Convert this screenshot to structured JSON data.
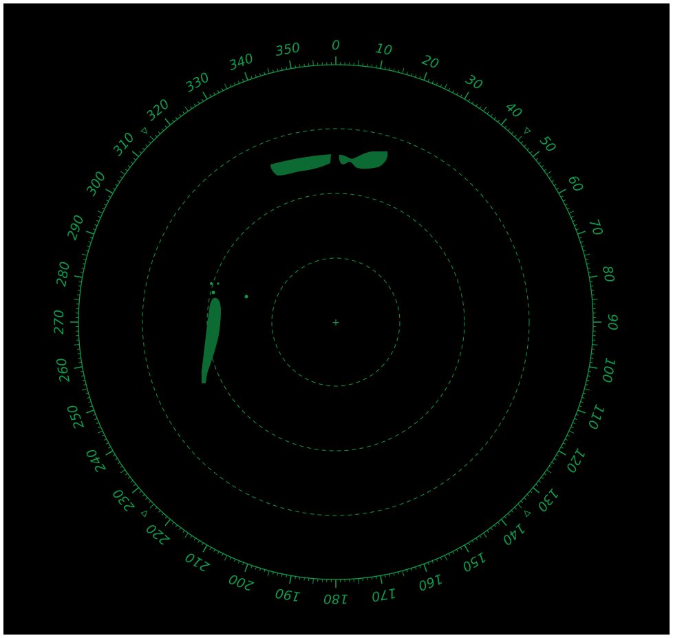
{
  "display": {
    "background_color": "#000000",
    "accent_color": "#0f9b4a",
    "echo_color": "#0b6b32"
  },
  "bearing_scale": {
    "labels": [
      "0",
      "10",
      "20",
      "30",
      "40",
      "50",
      "60",
      "70",
      "80",
      "90",
      "100",
      "110",
      "120",
      "130",
      "140",
      "150",
      "160",
      "170",
      "180",
      "190",
      "200",
      "210",
      "220",
      "230",
      "240",
      "250",
      "260",
      "270",
      "280",
      "290",
      "300",
      "310",
      "320",
      "330",
      "340",
      "350"
    ],
    "marker_bearings": [
      45,
      135,
      225,
      315
    ]
  },
  "range_rings": {
    "count": 3,
    "style": "dashed"
  },
  "center_marker": "+",
  "echoes": [
    {
      "name": "echo-north-west"
    },
    {
      "name": "echo-north-east"
    },
    {
      "name": "echo-west-coast"
    },
    {
      "name": "echo-small-blip"
    }
  ]
}
